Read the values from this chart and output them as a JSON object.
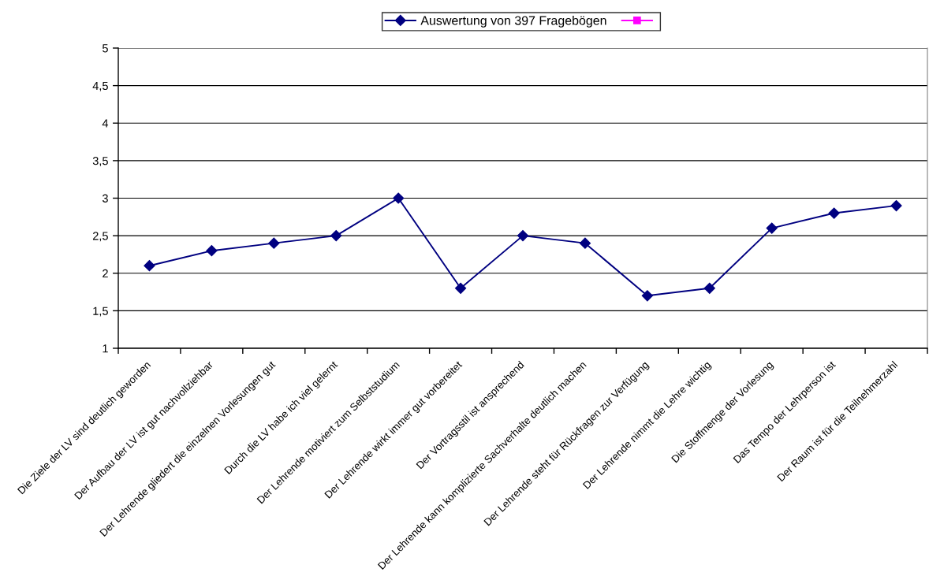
{
  "chart_data": {
    "type": "line",
    "categories": [
      "Die Ziele der LV sind deutlich geworden",
      "Der Aufbau der LV ist gut nachvollziehbar",
      "Der Lehrende gliedert die einzelnen Vorlesungen gut",
      "Durch die LV habe ich viel gelernt",
      "Der Lehrende motiviert zum Selbststudium",
      "Der Lehrende wirkt immer gut vorbereitet",
      "Der Vortragsstil ist ansprechend",
      "Der Lehrende kann komplizierte Sachverhalte deutlich machen",
      "Der Lehrende steht für Rückfragen zur Verfügung",
      "Der Lehrende nimmt die Lehre wichtig",
      "Die Stoffmenge der Vorlesung",
      "Das Tempo der Lehrperson ist",
      "Der Raum ist für die Teilnehmerzahl"
    ],
    "series": [
      {
        "name": "Auswertung von 397 Fragebögen",
        "color": "#000080",
        "marker": "diamond",
        "values": [
          2.1,
          2.3,
          2.4,
          2.5,
          3.0,
          1.8,
          2.5,
          2.4,
          1.7,
          1.8,
          2.6,
          2.8,
          2.9
        ]
      },
      {
        "color": "#ff00ff",
        "marker": "square",
        "values": [
          null,
          null,
          null,
          null,
          null,
          null,
          null,
          null,
          null,
          null,
          null,
          null,
          null
        ]
      }
    ],
    "ylim": [
      1,
      5
    ],
    "yticks": [
      1,
      {
        "value": 1.5,
        "label": "1,5"
      },
      2,
      {
        "value": 2.5,
        "label": "2,5"
      },
      3,
      {
        "value": 3.5,
        "label": "3,5"
      },
      4,
      {
        "value": 4.5,
        "label": "4,5"
      },
      5
    ],
    "grid": "y",
    "legend": "top",
    "line_style": "solid"
  }
}
